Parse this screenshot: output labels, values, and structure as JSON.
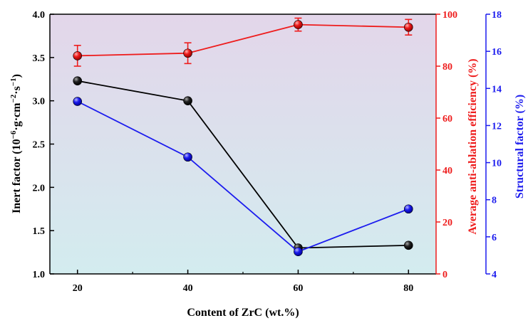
{
  "chart_data": {
    "type": "line",
    "xlabel": "Content of ZrC (wt.%)",
    "x": [
      20,
      40,
      60,
      80
    ],
    "xlim": [
      15,
      85
    ],
    "x_ticks": [
      "20",
      "40",
      "60",
      "80"
    ],
    "y_left": {
      "label_prefix": "Inert factor (10",
      "label_sup1": "−6",
      "label_mid1": "·g·cm",
      "label_sup2": "−2",
      "label_mid2": "·s",
      "label_sup3": "−1",
      "label_suffix": ")",
      "ylim": [
        1.0,
        4.0
      ],
      "ticks": [
        "1.0",
        "1.5",
        "2.0",
        "2.5",
        "3.0",
        "3.5",
        "4.0"
      ],
      "color": "#000000"
    },
    "y_right1": {
      "label": "Average anti-ablation efficiency (%)",
      "ylim": [
        0,
        100
      ],
      "ticks": [
        "0",
        "20",
        "40",
        "60",
        "80",
        "100"
      ],
      "color": "#ee1c1c"
    },
    "y_right2": {
      "label": "Structural factor (%)",
      "ylim": [
        4,
        18
      ],
      "ticks": [
        "4",
        "6",
        "8",
        "10",
        "12",
        "14",
        "16",
        "18"
      ],
      "color": "#1c1cee"
    },
    "series": [
      {
        "axis": "left",
        "color": "#000000",
        "values": [
          3.23,
          3.0,
          1.3,
          1.33
        ]
      },
      {
        "axis": "right1",
        "color": "#ee1c1c",
        "values": [
          84,
          85,
          96,
          95
        ],
        "errors": [
          4,
          4,
          2.5,
          3
        ]
      },
      {
        "axis": "right2",
        "color": "#1c1cee",
        "values": [
          13.3,
          10.3,
          5.2,
          7.5
        ]
      }
    ],
    "grid": false,
    "background": {
      "top": "#e3d6ea",
      "bottom": "#d3ecef"
    }
  }
}
